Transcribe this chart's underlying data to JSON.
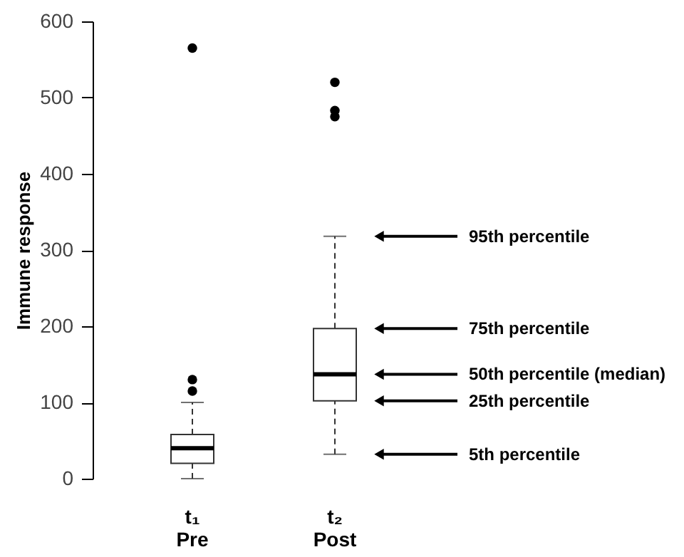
{
  "chart_data": {
    "type": "box",
    "ylabel": "Immune response",
    "categories": [
      "t₁\nPre",
      "t₂\nPost"
    ],
    "boxes": [
      {
        "low": 0,
        "q1": 20,
        "median": 40,
        "q3": 58,
        "high": 100,
        "outliers": [
          115,
          130,
          565
        ]
      },
      {
        "low": 32,
        "q1": 102,
        "median": 137,
        "q3": 197,
        "high": 318,
        "outliers": [
          475,
          483,
          520
        ]
      }
    ],
    "ylim": [
      0,
      600
    ],
    "yticks": [
      0,
      100,
      200,
      300,
      400,
      500,
      600
    ],
    "grid": false,
    "annotations": [
      "95th percentile",
      "75th percentile",
      "50th percentile (median)",
      "25th percentile",
      "5th percentile"
    ]
  }
}
